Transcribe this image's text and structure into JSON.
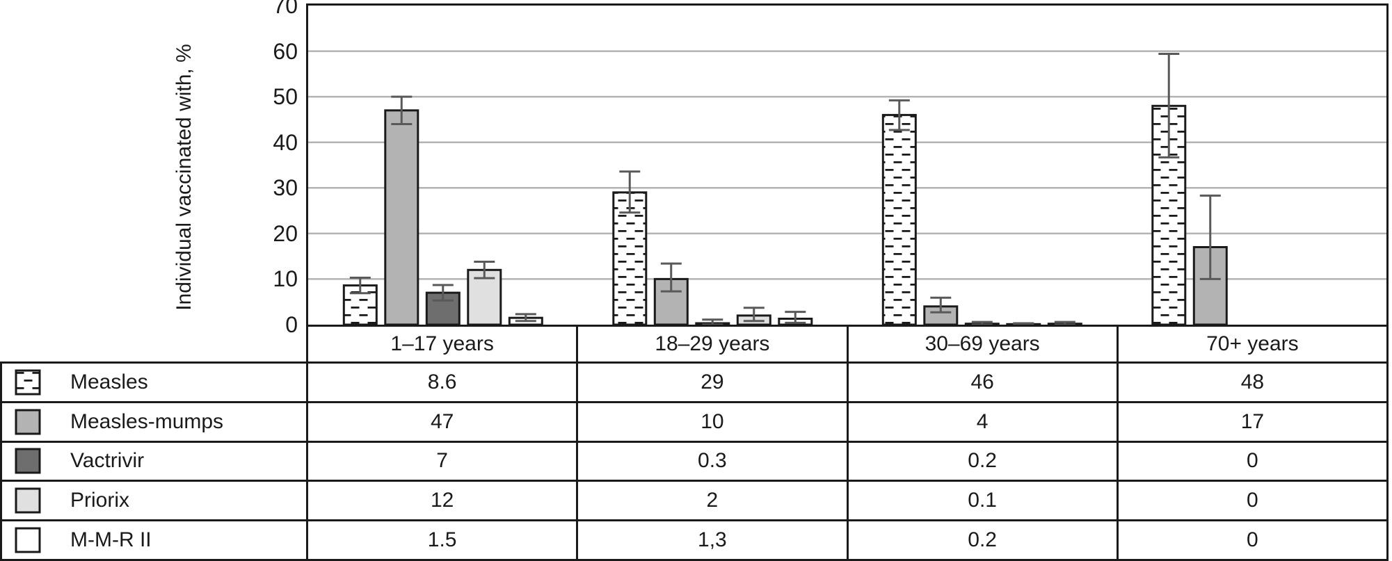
{
  "chart": {
    "y_tick_labels": [
      "0",
      "10",
      "20",
      "30",
      "40",
      "50",
      "60",
      "70"
    ],
    "gridline_color": "#b3b3b3",
    "border_color": "#1a1a1a",
    "error_bar_color": "#595959"
  },
  "chart_data": {
    "type": "bar",
    "title": "",
    "xlabel": "",
    "ylabel": "Individual vaccinated with,  %",
    "ylim": [
      0,
      70
    ],
    "y_tick_step": 10,
    "grid": true,
    "legend_position": "table-left",
    "categories": [
      "1–17 years",
      "18–29 years",
      "30–69 years",
      "70+ years"
    ],
    "series": [
      {
        "name": "Measles",
        "values": [
          8.6,
          29,
          46,
          48
        ],
        "errors_plus": [
          1.7,
          4.6,
          3.2,
          11.4
        ],
        "errors_minus": [
          1.7,
          4.4,
          3.3,
          11.3
        ],
        "fill": "#ffffff",
        "pattern": "horizontal-dashes"
      },
      {
        "name": "Measles-mumps",
        "values": [
          47,
          10,
          4,
          17
        ],
        "errors_plus": [
          3,
          3.4,
          1.9,
          11.3
        ],
        "errors_minus": [
          3,
          2.7,
          1.3,
          7
        ],
        "fill": "#b3b3b3",
        "pattern": null
      },
      {
        "name": "Vactrivir",
        "values": [
          7,
          0.3,
          0.2,
          0
        ],
        "errors_plus": [
          1.7,
          0.8,
          0.4,
          0
        ],
        "errors_minus": [
          1.7,
          0.3,
          0.2,
          0
        ],
        "fill": "#6e6e6e",
        "pattern": null
      },
      {
        "name": "Priorix",
        "values": [
          12,
          2,
          0.1,
          0
        ],
        "errors_plus": [
          1.8,
          1.7,
          0.2,
          0
        ],
        "errors_minus": [
          1.8,
          1.2,
          0.1,
          0
        ],
        "fill": "#e0e0e0",
        "pattern": null
      },
      {
        "name": "M-M-R II",
        "values": [
          1.5,
          1.3,
          0.2,
          0
        ],
        "errors_plus": [
          0.8,
          1.5,
          0.4,
          0
        ],
        "errors_minus": [
          0.7,
          0.9,
          0.2,
          0
        ],
        "fill": "#ffffff",
        "pattern": null
      }
    ],
    "table_values": [
      [
        "8.6",
        "29",
        "46",
        "48"
      ],
      [
        "47",
        "10",
        "4",
        "17"
      ],
      [
        "7",
        "0.3",
        "0.2",
        "0"
      ],
      [
        "12",
        "2",
        "0.1",
        "0"
      ],
      [
        "1.5",
        "1,3",
        "0.2",
        "0"
      ]
    ]
  }
}
